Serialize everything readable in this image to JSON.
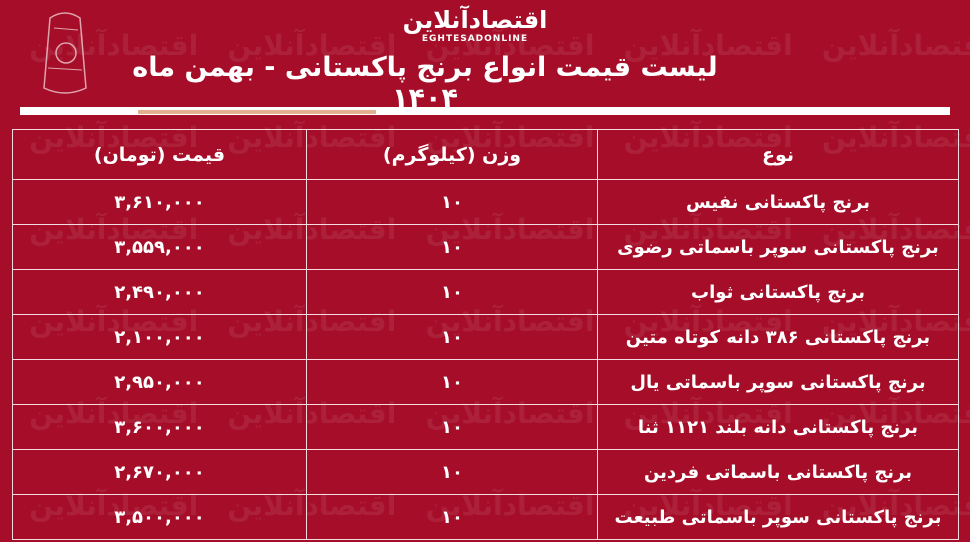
{
  "brand": {
    "logo_fa": "اقتصادآنلاین",
    "logo_en": "EGHTESADONLINE",
    "background": "#a50d28",
    "accent": "#e4b08f"
  },
  "title": "لیست قیمت انواع برنج پاکستانی - بهمن ماه ۱۴۰۴",
  "table": {
    "headers": [
      "نوع",
      "وزن (کیلوگرم)",
      "قیمت (تومان)"
    ],
    "rows": [
      {
        "type": "برنج پاکستانی نفیس",
        "weight": "۱۰",
        "price": "۳,۶۱۰,۰۰۰"
      },
      {
        "type": "برنج پاکستانی سوپر باسماتی رضوی",
        "weight": "۱۰",
        "price": "۳,۵۵۹,۰۰۰"
      },
      {
        "type": "برنج پاکستانی ثواب",
        "weight": "۱۰",
        "price": "۲,۴۹۰,۰۰۰"
      },
      {
        "type": "برنج پاکستانی ۳۸۶ دانه کوتاه متین",
        "weight": "۱۰",
        "price": "۲,۱۰۰,۰۰۰"
      },
      {
        "type": "برنج پاکستانی سوپر باسماتی یال",
        "weight": "۱۰",
        "price": "۲,۹۵۰,۰۰۰"
      },
      {
        "type": "برنج پاکستانی دانه بلند ۱۱۲۱ ثنا",
        "weight": "۱۰",
        "price": "۳,۶۰۰,۰۰۰"
      },
      {
        "type": "برنج پاکستانی باسماتی فردین",
        "weight": "۱۰",
        "price": "۲,۶۷۰,۰۰۰"
      },
      {
        "type": "برنج پاکستانی سوپر باسماتی طبیعت",
        "weight": "۱۰",
        "price": "۳,۵۰۰,۰۰۰"
      }
    ]
  }
}
